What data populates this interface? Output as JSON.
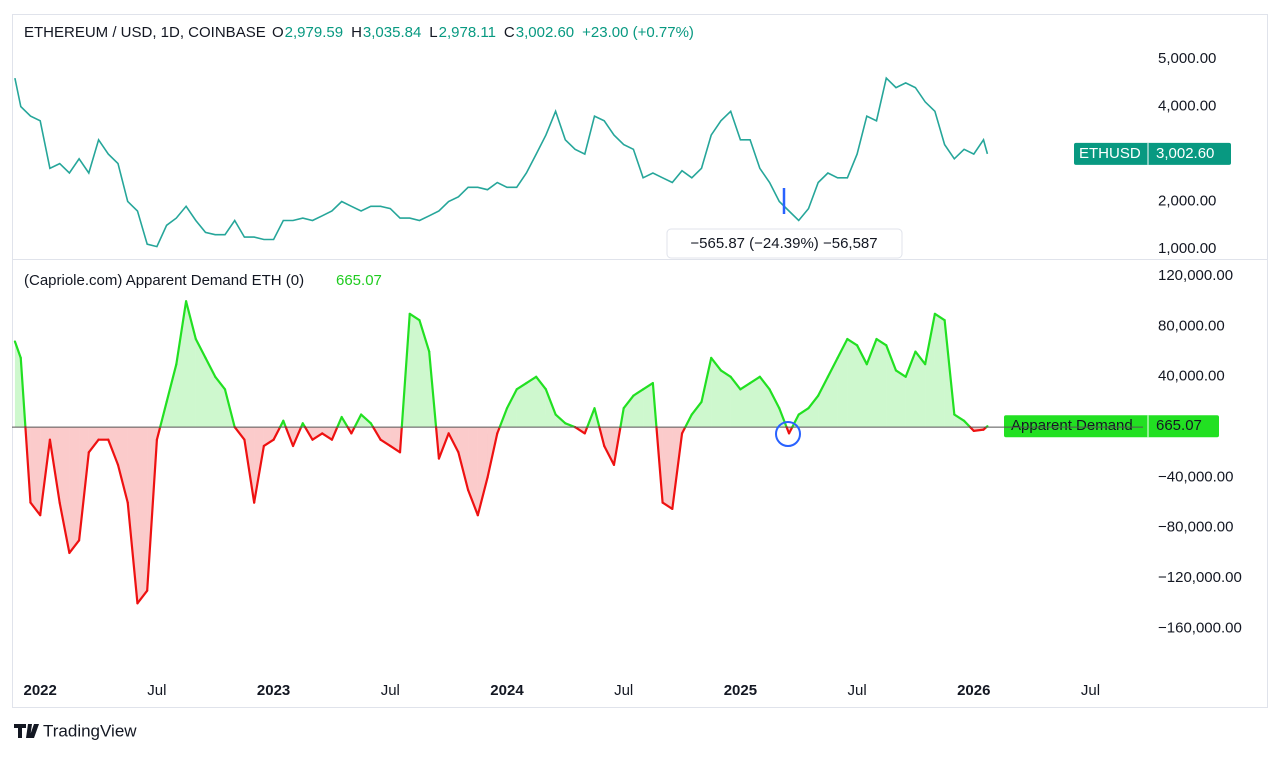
{
  "chart_data": [
    {
      "type": "line",
      "title": "ETHEREUM / USD, 1D, COINBASE",
      "ohlc_keys": [
        "O",
        "H",
        "L",
        "C"
      ],
      "ohlc_values": [
        "2,979.59",
        "3,035.84",
        "2,978.11",
        "3,002.60"
      ],
      "change": "+23.00 (+0.77%)",
      "last_value_label": "3,002.60",
      "annotation": "−565.87 (−24.39%) −56,587",
      "x": [
        -1.3,
        -1,
        -0.5,
        0,
        0.5,
        1,
        1.5,
        2,
        2.5,
        3,
        3.5,
        4,
        4.5,
        5,
        5.5,
        6,
        6.5,
        7,
        7.5,
        8,
        8.5,
        9,
        9.5,
        10,
        10.5,
        11,
        11.5,
        12,
        12.5,
        13,
        13.5,
        14,
        14.5,
        15,
        15.5,
        16,
        16.5,
        17,
        17.5,
        18,
        18.5,
        19,
        19.5,
        20,
        20.5,
        21,
        21.5,
        22,
        22.5,
        23,
        23.5,
        24,
        24.5,
        25,
        25.5,
        26,
        26.5,
        27,
        27.5,
        28,
        28.5,
        29,
        29.5,
        30,
        30.5,
        31,
        31.5,
        32,
        32.5,
        33,
        33.5,
        34,
        34.5,
        35,
        35.5,
        36,
        36.5,
        37,
        37.5,
        38,
        38.5,
        39,
        39.5,
        40,
        40.5,
        41,
        41.5,
        42,
        42.5,
        43,
        43.5,
        44,
        44.5,
        45,
        45.5,
        46,
        46.5,
        47,
        47.5,
        48,
        48.5,
        48.7
      ],
      "series": [
        {
          "name": "ETHUSD",
          "color": "#26a69a",
          "values": [
            4600,
            4000,
            3800,
            3700,
            2700,
            2800,
            2600,
            2900,
            2600,
            3300,
            3000,
            2800,
            2000,
            1800,
            1100,
            1050,
            1500,
            1650,
            1900,
            1600,
            1350,
            1300,
            1300,
            1600,
            1250,
            1250,
            1200,
            1200,
            1600,
            1600,
            1650,
            1600,
            1700,
            1800,
            2000,
            1900,
            1800,
            1900,
            1900,
            1850,
            1650,
            1650,
            1600,
            1700,
            1800,
            2000,
            2100,
            2300,
            2300,
            2250,
            2400,
            2300,
            2300,
            2600,
            3000,
            3400,
            3900,
            3300,
            3100,
            3000,
            3800,
            3700,
            3400,
            3200,
            3100,
            2500,
            2600,
            2500,
            2400,
            2650,
            2500,
            2700,
            3400,
            3700,
            3900,
            3300,
            3300,
            2700,
            2400,
            2000,
            1800,
            1600,
            1850,
            2400,
            2600,
            2500,
            2500,
            3000,
            3800,
            3700,
            4600,
            4400,
            4500,
            4400,
            4100,
            3900,
            3200,
            2900,
            3100,
            3000,
            3300,
            3002.6
          ]
        }
      ],
      "xlim": [
        -1.45,
        56.7
      ],
      "ylim": [
        810,
        5930
      ],
      "yticks": [
        {
          "value": 1000,
          "label": "1,000.00"
        },
        {
          "value": 2000,
          "label": "2,000.00"
        },
        {
          "value": 4000,
          "label": "4,000.00"
        },
        {
          "value": 5000,
          "label": "5,000.00"
        }
      ],
      "tag_color": "#089981"
    },
    {
      "type": "area",
      "title": "(Capriole.com) Apparent Demand ETH (0)",
      "last_value_label": "665.07",
      "x": [
        -1.3,
        -1,
        -0.5,
        0,
        0.5,
        1,
        1.5,
        2,
        2.5,
        3,
        3.5,
        4,
        4.5,
        5,
        5.5,
        6,
        6.5,
        7,
        7.5,
        8,
        8.5,
        9,
        9.5,
        10,
        10.5,
        11,
        11.5,
        12,
        12.5,
        13,
        13.5,
        14,
        14.5,
        15,
        15.5,
        16,
        16.5,
        17,
        17.5,
        18,
        18.5,
        19,
        19.5,
        20,
        20.5,
        21,
        21.5,
        22,
        22.5,
        23,
        23.5,
        24,
        24.5,
        25,
        25.5,
        26,
        26.5,
        27,
        27.5,
        28,
        28.5,
        29,
        29.5,
        30,
        30.5,
        31,
        31.5,
        32,
        32.5,
        33,
        33.5,
        34,
        34.5,
        35,
        35.5,
        36,
        36.5,
        37,
        37.5,
        38,
        38.5,
        39,
        39.5,
        40,
        40.5,
        41,
        41.5,
        42,
        42.5,
        43,
        43.5,
        44,
        44.5,
        45,
        45.5,
        46,
        46.5,
        47,
        47.5,
        48,
        48.5,
        48.7
      ],
      "series": [
        {
          "name": "Apparent Demand",
          "color": "#22e022",
          "negative_color": "#ee1111",
          "values": [
            68000,
            55000,
            -60000,
            -70000,
            -10000,
            -60000,
            -100000,
            -90000,
            -20000,
            -10000,
            -10000,
            -30000,
            -60000,
            -140000,
            -130000,
            -10000,
            20000,
            50000,
            100000,
            70000,
            55000,
            40000,
            30000,
            0,
            -10000,
            -60000,
            -15000,
            -10000,
            5000,
            -15000,
            3000,
            -10000,
            -5000,
            -10000,
            8000,
            -5000,
            10000,
            3000,
            -10000,
            -15000,
            -20000,
            90000,
            85000,
            60000,
            -25000,
            -5000,
            -20000,
            -50000,
            -70000,
            -40000,
            -5000,
            15000,
            30000,
            35000,
            40000,
            30000,
            10000,
            3000,
            0,
            -5000,
            15000,
            -15000,
            -30000,
            15000,
            25000,
            30000,
            35000,
            -60000,
            -65000,
            -5000,
            10000,
            20000,
            55000,
            45000,
            40000,
            30000,
            35000,
            40000,
            30000,
            15000,
            -5000,
            10000,
            15000,
            25000,
            40000,
            55000,
            70000,
            65000,
            50000,
            70000,
            65000,
            45000,
            40000,
            60000,
            50000,
            90000,
            85000,
            10000,
            5000,
            -3000,
            -2000,
            665.07
          ]
        }
      ],
      "xlim": [
        -1.45,
        56.7
      ],
      "ylim": [
        -197000,
        132000
      ],
      "yticks": [
        {
          "value": -160000,
          "label": "−160,000.00"
        },
        {
          "value": -120000,
          "label": "−120,000.00"
        },
        {
          "value": -80000,
          "label": "−80,000.00"
        },
        {
          "value": -40000,
          "label": "−40,000.00"
        },
        {
          "value": 40000,
          "label": "40,000.00"
        },
        {
          "value": 80000,
          "label": "80,000.00"
        },
        {
          "value": 120000,
          "label": "120,000.00"
        }
      ],
      "xticks": [
        {
          "value": 0,
          "label": "2022"
        },
        {
          "value": 6,
          "label": "Jul"
        },
        {
          "value": 12,
          "label": "2023"
        },
        {
          "value": 18,
          "label": "Jul"
        },
        {
          "value": 24,
          "label": "2024"
        },
        {
          "value": 30,
          "label": "Jul"
        },
        {
          "value": 36,
          "label": "2025"
        },
        {
          "value": 42,
          "label": "Jul"
        },
        {
          "value": 48,
          "label": "2026"
        },
        {
          "value": 54,
          "label": "Jul"
        }
      ]
    }
  ],
  "footer": {
    "brand": "TradingView"
  }
}
